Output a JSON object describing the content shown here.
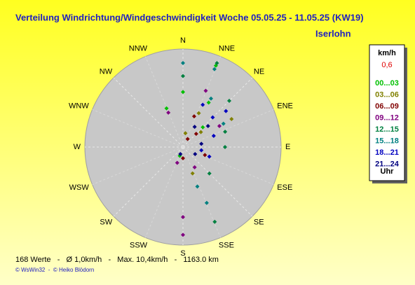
{
  "chart_data": {
    "type": "polar-scatter",
    "title": "Verteilung Windrichtung/Windgeschwindigkeit  Woche 05.05.25 - 11.05.25 (KW19)",
    "subtitle": "Iserlohn",
    "directions": [
      "N",
      "NNE",
      "NE",
      "ENE",
      "E",
      "ESE",
      "SE",
      "SSE",
      "S",
      "SSW",
      "SW",
      "WSW",
      "W",
      "WNW",
      "NW",
      "NNW"
    ],
    "rlim": [
      0,
      10.5
    ],
    "legend_title": "km/h",
    "legend_value": "0,6",
    "legend_footer": "Uhr",
    "series": [
      {
        "name": "00...03",
        "color": "#00c000",
        "theta": [
          22,
          30,
          45,
          337,
          0,
          200
        ],
        "r": [
          9.4,
          5.5,
          3.0,
          4.5,
          5.9,
          1.0
        ]
      },
      {
        "name": "03...06",
        "color": "#808000",
        "theta": [
          25,
          50,
          60,
          160,
          10
        ],
        "r": [
          4.0,
          2.5,
          6.0,
          3.0,
          1.5
        ]
      },
      {
        "name": "06...09",
        "color": "#800000",
        "theta": [
          20,
          45,
          110,
          180,
          30
        ],
        "r": [
          3.5,
          2.0,
          2.5,
          1.2,
          1.0
        ]
      },
      {
        "name": "09...12",
        "color": "#800080",
        "theta": [
          180,
          180,
          22,
          337,
          150,
          60,
          200
        ],
        "r": [
          9.4,
          7.5,
          6.5,
          4.0,
          2.5,
          4.5,
          1.8
        ]
      },
      {
        "name": "12...15",
        "color": "#008040",
        "theta": [
          22,
          45,
          157,
          0,
          70,
          135,
          90
        ],
        "r": [
          9.7,
          7.0,
          8.7,
          7.6,
          4.8,
          4.0,
          4.5
        ]
      },
      {
        "name": "15...18",
        "color": "#008080",
        "theta": [
          22,
          0,
          157,
          30,
          60,
          160
        ],
        "r": [
          9.0,
          9.0,
          6.5,
          6.0,
          5.0,
          4.5
        ]
      },
      {
        "name": "18...21",
        "color": "#0000c0",
        "theta": [
          25,
          45,
          70,
          110,
          50,
          100
        ],
        "r": [
          5.0,
          4.5,
          3.5,
          3.0,
          6.0,
          2.0
        ]
      },
      {
        "name": "21...24",
        "color": "#000080",
        "theta": [
          30,
          50,
          120,
          80,
          200
        ],
        "r": [
          2.5,
          3.5,
          1.5,
          2.0,
          0.8
        ]
      }
    ],
    "footer": "168 Werte   -   Ø 1,0km/h   -   Max. 10,4km/h   -   1163.0 km",
    "credit": "© WsWin32  -  © Heiko Blödorn"
  }
}
